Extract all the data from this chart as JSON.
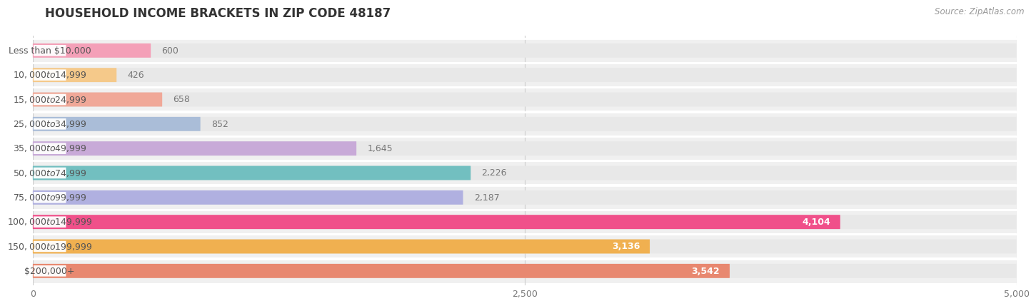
{
  "title": "HOUSEHOLD INCOME BRACKETS IN ZIP CODE 48187",
  "source": "Source: ZipAtlas.com",
  "categories": [
    "Less than $10,000",
    "$10,000 to $14,999",
    "$15,000 to $24,999",
    "$25,000 to $34,999",
    "$35,000 to $49,999",
    "$50,000 to $74,999",
    "$75,000 to $99,999",
    "$100,000 to $149,999",
    "$150,000 to $199,999",
    "$200,000+"
  ],
  "values": [
    600,
    426,
    658,
    852,
    1645,
    2226,
    2187,
    4104,
    3136,
    3542
  ],
  "bar_colors": [
    "#f4a0b8",
    "#f5c98a",
    "#f0a898",
    "#aabdd8",
    "#c8aad8",
    "#72bfc0",
    "#b0b0e0",
    "#f0508a",
    "#f0b050",
    "#e88870"
  ],
  "value_label_colors": [
    "#888888",
    "#888888",
    "#888888",
    "#888888",
    "#888888",
    "#888888",
    "#888888",
    "#ffffff",
    "#888888",
    "#ffffff"
  ],
  "background_color": "#ffffff",
  "row_bg_color": "#f0f0f0",
  "bar_track_color": "#e8e8e8",
  "xlim": [
    0,
    5000
  ],
  "xticks": [
    0,
    2500,
    5000
  ],
  "title_fontsize": 12,
  "label_fontsize": 9,
  "value_fontsize": 9,
  "source_fontsize": 8.5
}
